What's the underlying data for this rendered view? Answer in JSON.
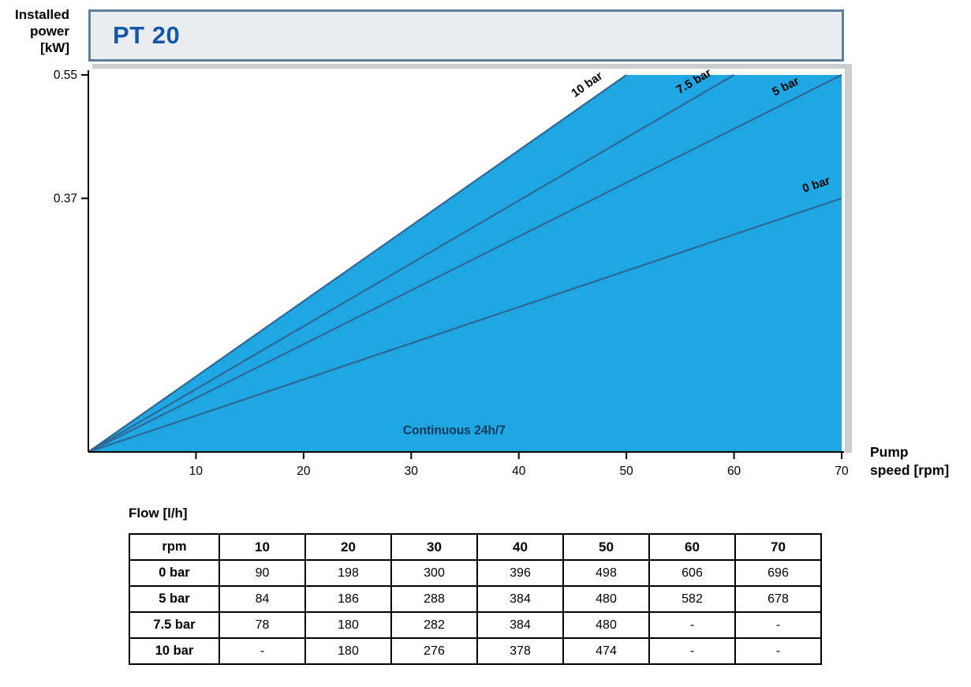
{
  "page": {
    "header_title": "PT 20",
    "y_axis_label_lines": [
      "Installed",
      "power",
      "[kW]"
    ],
    "x_axis_label_lines": [
      "Pump",
      "speed [rpm]"
    ]
  },
  "colors": {
    "accent_blue": "#1558a7",
    "area_fill": "#1ea7e2",
    "series_line": "#2f6795",
    "area_label_text": "#11365a",
    "shadow_gray": "#c9ced2",
    "header_bg": "#e9edf0",
    "header_border": "#5f7f99"
  },
  "chart_data": {
    "type": "line",
    "title": "PT 20",
    "xlabel": "Pump speed [rpm]",
    "ylabel": "Installed power [kW]",
    "xlim": [
      0,
      70
    ],
    "ylim": [
      0,
      0.55
    ],
    "x_ticks": [
      10,
      20,
      30,
      40,
      50,
      60,
      70
    ],
    "y_ticks": [
      0.55,
      0.37
    ],
    "grid": false,
    "legend_position": "labels-on-lines",
    "area_label": "Continuous 24h/7",
    "area_boundary_series": "10 bar",
    "area_color": "#1ea7e2",
    "line_color": "#2f6795",
    "area_label_color": "#11365a",
    "series": [
      {
        "name": "10 bar",
        "points": [
          [
            0,
            0
          ],
          [
            50,
            0.55
          ]
        ]
      },
      {
        "name": "7.5 bar",
        "points": [
          [
            0,
            0
          ],
          [
            60,
            0.55
          ]
        ]
      },
      {
        "name": "5 bar",
        "points": [
          [
            0,
            0
          ],
          [
            70,
            0.55
          ]
        ]
      },
      {
        "name": "0 bar",
        "points": [
          [
            0,
            0
          ],
          [
            70,
            0.37
          ]
        ]
      }
    ]
  },
  "table": {
    "title": "Flow [l/h]",
    "columns": [
      "rpm",
      "10",
      "20",
      "30",
      "40",
      "50",
      "60",
      "70"
    ],
    "rows": [
      {
        "label": "0 bar",
        "values": [
          "90",
          "198",
          "300",
          "396",
          "498",
          "606",
          "696"
        ]
      },
      {
        "label": "5 bar",
        "values": [
          "84",
          "186",
          "288",
          "384",
          "480",
          "582",
          "678"
        ]
      },
      {
        "label": "7.5 bar",
        "values": [
          "78",
          "180",
          "282",
          "384",
          "480",
          "-",
          "-"
        ]
      },
      {
        "label": "10 bar",
        "values": [
          "-",
          "180",
          "276",
          "378",
          "474",
          "-",
          "-"
        ]
      }
    ]
  }
}
